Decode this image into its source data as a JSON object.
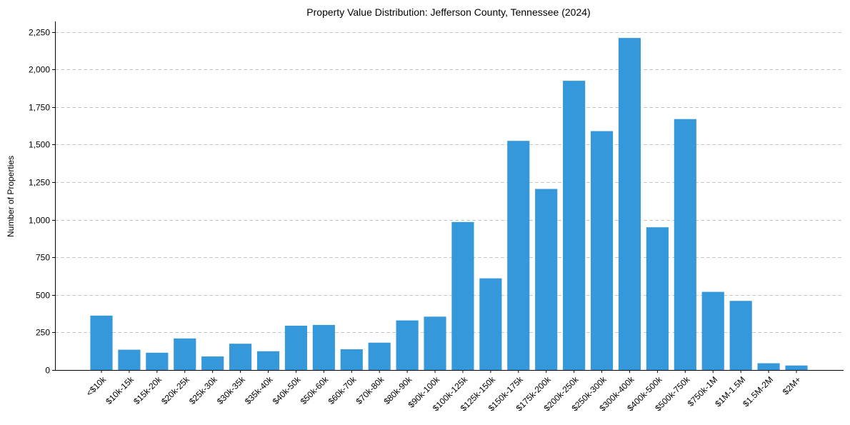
{
  "chart_data": {
    "type": "bar",
    "title": "Property Value Distribution: Jefferson County, Tennessee (2024)",
    "xlabel": "",
    "ylabel": "Number of Properties",
    "ylim": [
      0,
      2320
    ],
    "yticks": [
      0,
      250,
      500,
      750,
      1000,
      1250,
      1500,
      1750,
      2000,
      2250
    ],
    "ytick_labels": [
      "0",
      "250",
      "500",
      "750",
      "1,000",
      "1,250",
      "1,500",
      "1,750",
      "2,000",
      "2,250"
    ],
    "grid": "y-dashed",
    "bar_color": "#3498db",
    "categories": [
      "<$10k",
      "$10k-15k",
      "$15k-20k",
      "$20k-25k",
      "$25k-30k",
      "$30k-35k",
      "$35k-40k",
      "$40k-50k",
      "$50k-60k",
      "$60k-70k",
      "$70k-80k",
      "$80k-90k",
      "$90k-100k",
      "$100k-125k",
      "$125k-150k",
      "$150k-175k",
      "$175k-200k",
      "$200k-250k",
      "$250k-300k",
      "$300k-400k",
      "$400k-500k",
      "$500k-750k",
      "$750k-1M",
      "$1M-1.5M",
      "$1.5M-2M",
      "$2M+"
    ],
    "values": [
      362,
      135,
      115,
      210,
      90,
      175,
      125,
      295,
      300,
      138,
      182,
      330,
      355,
      985,
      610,
      1525,
      1205,
      1925,
      1590,
      2210,
      950,
      1670,
      520,
      460,
      45,
      30
    ]
  }
}
